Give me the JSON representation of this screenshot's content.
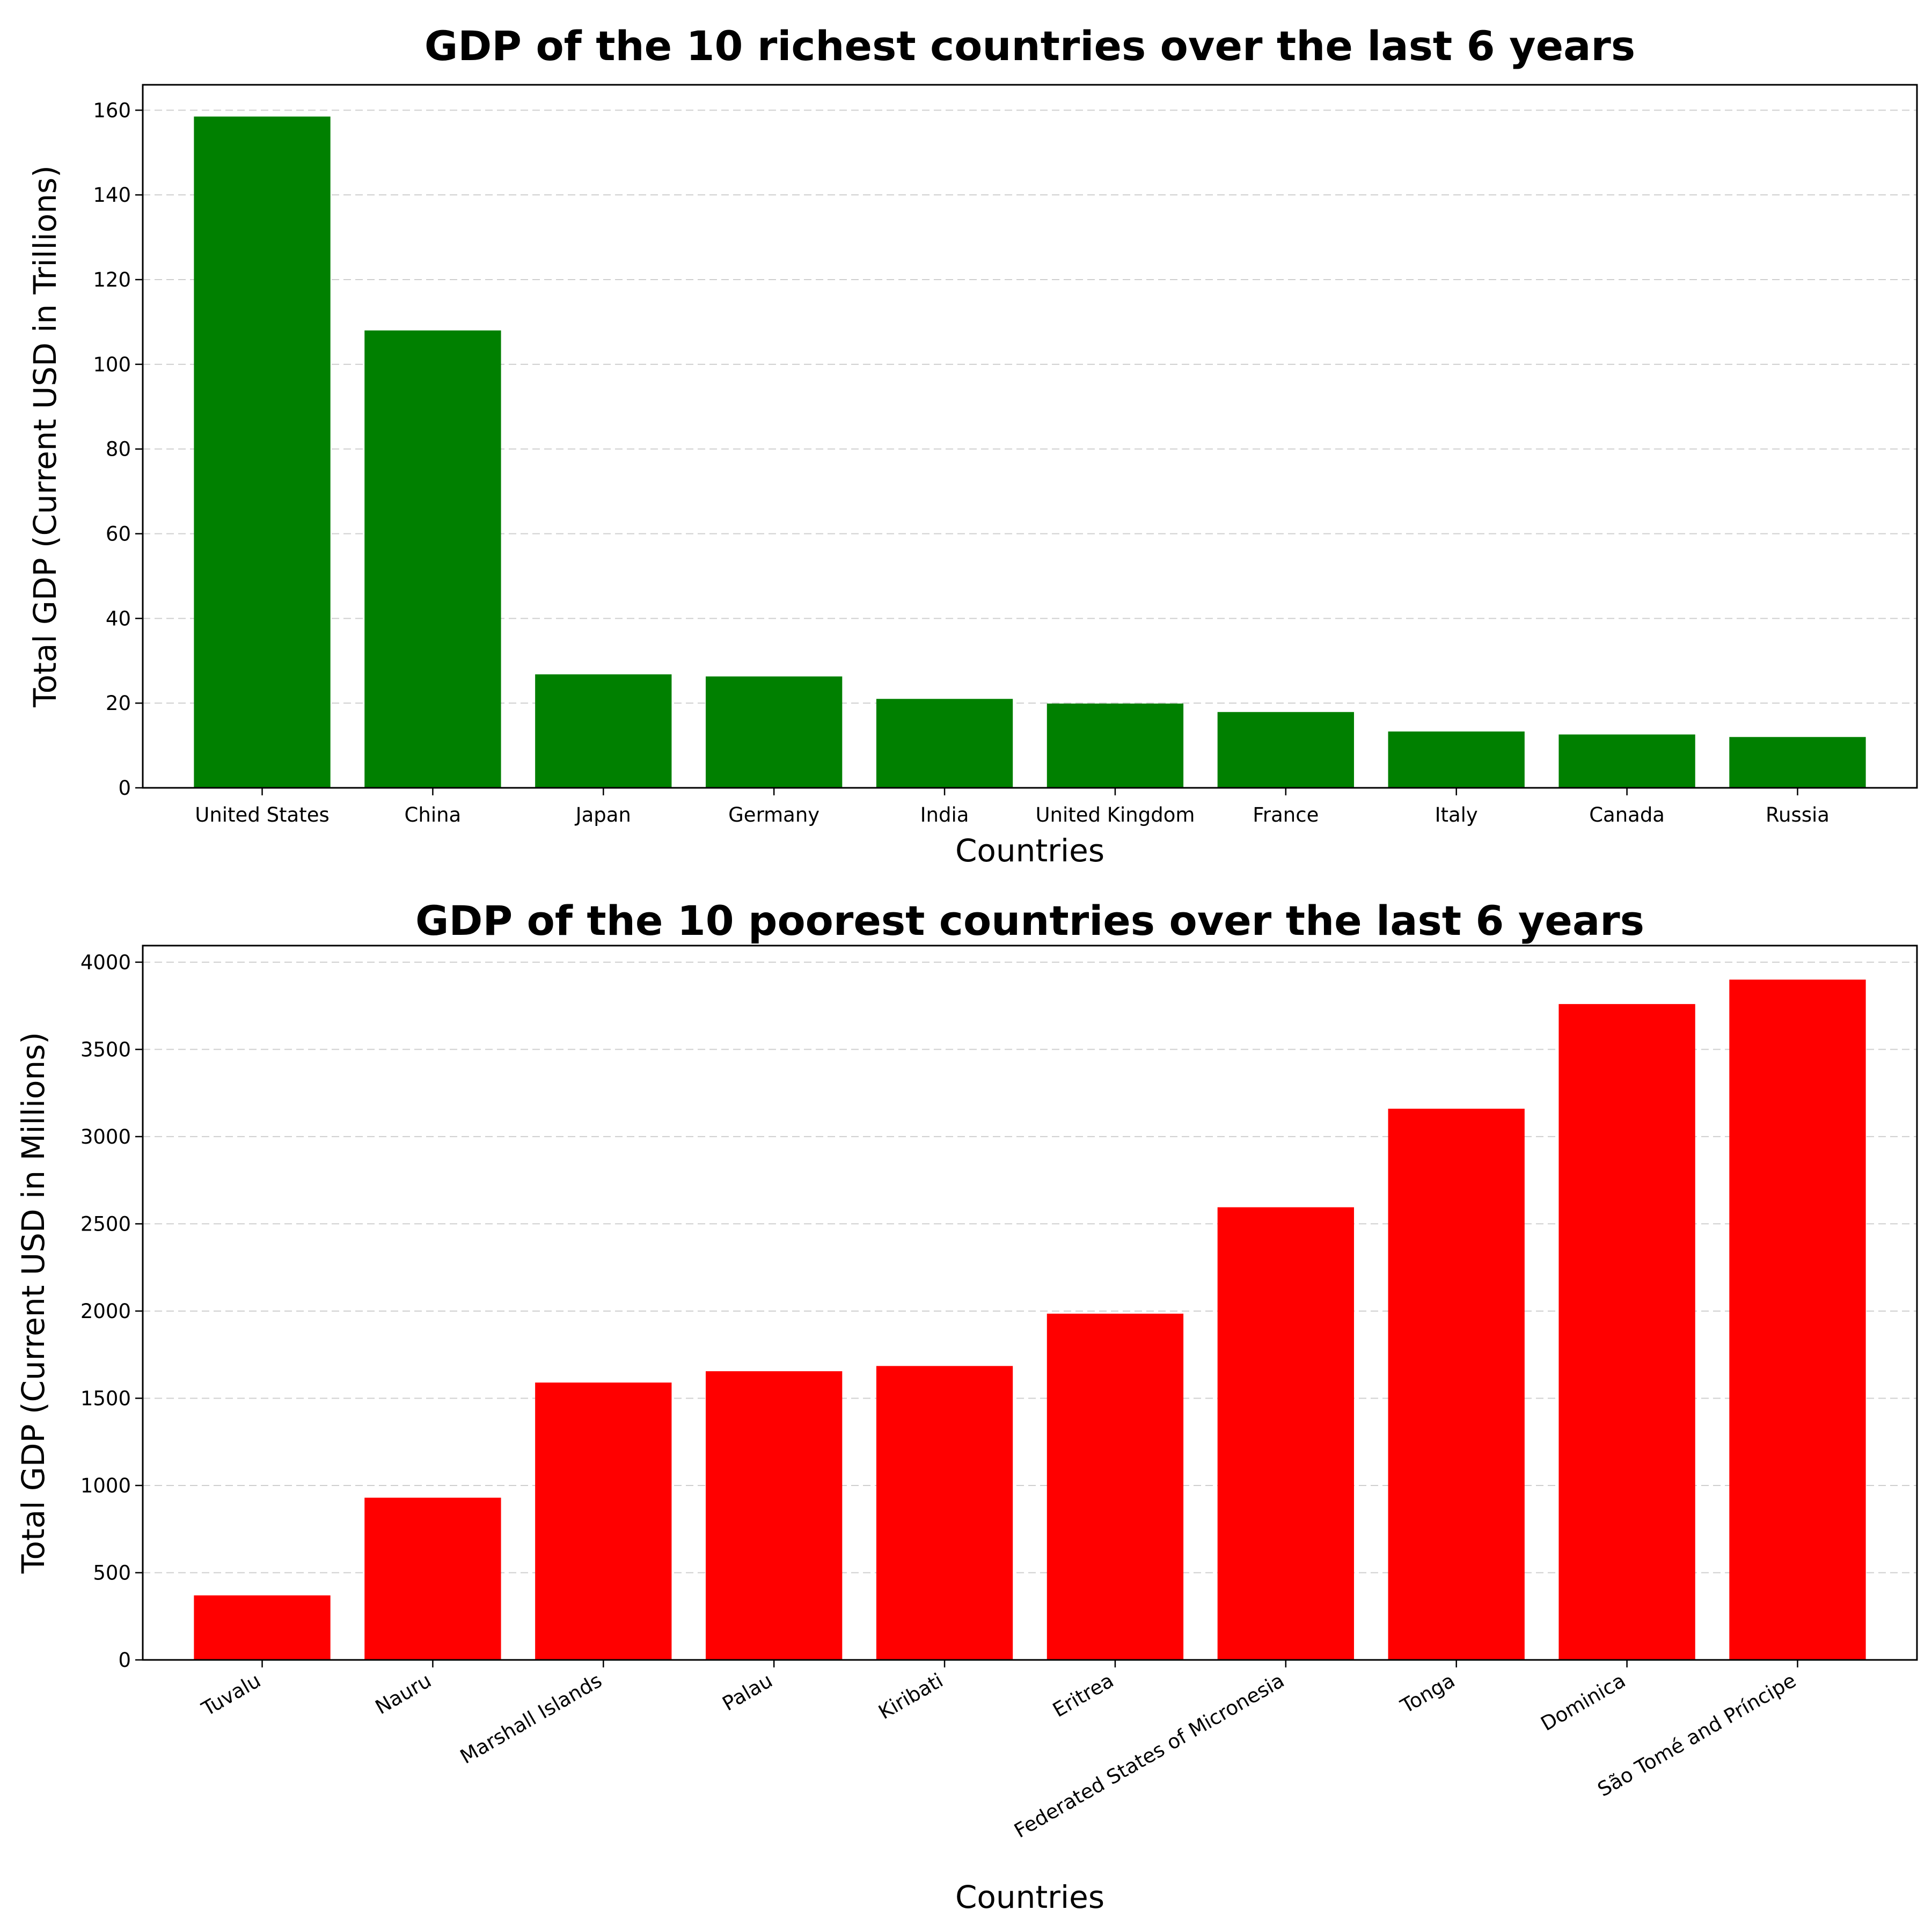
{
  "colors": {
    "richest": "#008000",
    "poorest": "#ff0000"
  },
  "chart_data": [
    {
      "type": "bar",
      "title": "GDP of the 10 richest countries over the last 6 years",
      "xlabel": "Countries",
      "ylabel": "Total GDP (Current USD in Trillions)",
      "categories": [
        "United States",
        "China",
        "Japan",
        "Germany",
        "India",
        "United Kingdom",
        "France",
        "Italy",
        "Canada",
        "Russia"
      ],
      "values": [
        158.5,
        108.0,
        26.8,
        26.3,
        21.0,
        19.9,
        17.9,
        13.3,
        12.6,
        12.0
      ],
      "ylim": [
        0,
        166
      ],
      "yticks": [
        0,
        20,
        40,
        60,
        80,
        100,
        120,
        140,
        160
      ],
      "grid": "y",
      "color": "#008000",
      "xtick_rotation": 0
    },
    {
      "type": "bar",
      "title": "GDP of the 10 poorest countries over the last 6 years",
      "xlabel": "Countries",
      "ylabel": "Total GDP (Current USD in Millions)",
      "categories": [
        "Tuvalu",
        "Nauru",
        "Marshall Islands",
        "Palau",
        "Kiribati",
        "Eritrea",
        "Federated States of Micronesia",
        "Tonga",
        "Dominica",
        "São Tomé and Príncipe"
      ],
      "values": [
        370,
        930,
        1590,
        1655,
        1685,
        1985,
        2595,
        3160,
        3760,
        3900
      ],
      "ylim": [
        0,
        4095
      ],
      "yticks": [
        0,
        500,
        1000,
        1500,
        2000,
        2500,
        3000,
        3500,
        4000
      ],
      "grid": "y",
      "color": "#ff0000",
      "xtick_rotation": -30
    }
  ]
}
